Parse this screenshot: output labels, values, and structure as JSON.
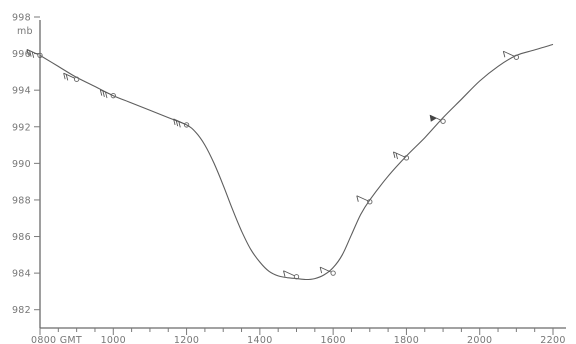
{
  "chart_data": {
    "type": "line",
    "title": "",
    "ylabel": "mb",
    "xlabel": "",
    "ylim": [
      981,
      998
    ],
    "xlim": [
      800,
      2230
    ],
    "grid": false,
    "y_ticks": [
      982,
      984,
      986,
      988,
      990,
      992,
      994,
      996,
      998
    ],
    "x_tick_labels": [
      {
        "x": 800,
        "label": "0800 GMT"
      },
      {
        "x": 1000,
        "label": "1000"
      },
      {
        "x": 1200,
        "label": "1200"
      },
      {
        "x": 1400,
        "label": "1400"
      },
      {
        "x": 1600,
        "label": "1600"
      },
      {
        "x": 1800,
        "label": "1800"
      },
      {
        "x": 2000,
        "label": "2000"
      },
      {
        "x": 2200,
        "label": "2200"
      }
    ],
    "series": [
      {
        "x": [
          800,
          850,
          900,
          950,
          1000,
          1050,
          1100,
          1150,
          1200,
          1225,
          1250,
          1275,
          1300,
          1325,
          1350,
          1375,
          1400,
          1425,
          1450,
          1475,
          1500,
          1525,
          1550,
          1575,
          1600,
          1625,
          1650,
          1675,
          1700,
          1750,
          1800,
          1850,
          1900,
          1950,
          2000,
          2050,
          2100,
          2150,
          2200
        ],
        "values": [
          995.9,
          995.3,
          994.7,
          994.2,
          993.7,
          993.3,
          992.9,
          992.5,
          992.1,
          991.7,
          991.0,
          990.0,
          988.8,
          987.5,
          986.3,
          985.3,
          984.6,
          984.1,
          983.85,
          983.75,
          983.7,
          983.65,
          983.7,
          983.9,
          984.3,
          985.0,
          986.1,
          987.2,
          988.0,
          989.3,
          990.4,
          991.4,
          992.5,
          993.5,
          994.5,
          995.3,
          995.9,
          996.2,
          996.5
        ]
      }
    ],
    "observations": [
      {
        "x": 800,
        "y": 995.9,
        "barbs": 3
      },
      {
        "x": 900,
        "y": 994.6,
        "barbs": 2
      },
      {
        "x": 1000,
        "y": 993.7,
        "barbs": 3
      },
      {
        "x": 1200,
        "y": 992.1,
        "barbs": 3
      },
      {
        "x": 1500,
        "y": 983.8,
        "barbs": 1
      },
      {
        "x": 1600,
        "y": 984.0,
        "barbs": 1
      },
      {
        "x": 1700,
        "y": 987.9,
        "barbs": 1
      },
      {
        "x": 1800,
        "y": 990.3,
        "barbs": 2
      },
      {
        "x": 1900,
        "y": 992.3,
        "barbs": 0,
        "pennant": true
      },
      {
        "x": 2100,
        "y": 995.8,
        "barbs": 1
      }
    ]
  }
}
